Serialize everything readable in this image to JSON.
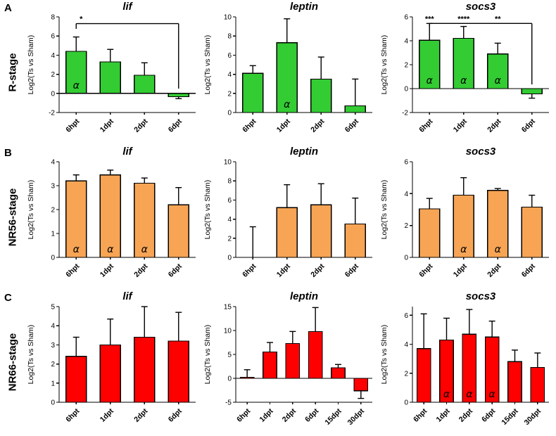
{
  "figure": {
    "alpha_symbol": "α",
    "ylabel": "Log2(Ts vs Sham)",
    "panel_rows": [
      {
        "panel": "A",
        "stage": "R-stage",
        "bar_color": "#33CC33"
      },
      {
        "panel": "B",
        "stage": "NR56-stage",
        "bar_color": "#F7A454"
      },
      {
        "panel": "C",
        "stage": "NR66-stage",
        "bar_color": "#FF0000"
      }
    ]
  },
  "chart_data": [
    {
      "type": "bar",
      "panel": "A",
      "stage": "R-stage",
      "title": "lif",
      "ylabel": "Log2(Ts vs Sham)",
      "bar_color": "#33CC33",
      "categories": [
        "6hpt",
        "1dpt",
        "2dpt",
        "6dpt"
      ],
      "values": [
        4.4,
        3.3,
        1.9,
        -0.35
      ],
      "errors": [
        1.5,
        1.3,
        1.3,
        0.2
      ],
      "ylim": [
        -2,
        8
      ],
      "yticks": [
        -2,
        0,
        2,
        4,
        6,
        8
      ],
      "alpha_marks": [
        0
      ],
      "sig": {
        "y": 7.3,
        "x1": 0,
        "x2": 3,
        "drop1": 6.75,
        "drop2": 0.5,
        "stars": [
          {
            "i": 0,
            "dx": 7,
            "text": "*"
          }
        ]
      }
    },
    {
      "type": "bar",
      "panel": "A",
      "stage": "R-stage",
      "title": "leptin",
      "ylabel": "Log2(Ts vs Sham)",
      "bar_color": "#33CC33",
      "categories": [
        "6hpt",
        "1dpt",
        "2dpt",
        "6dpt"
      ],
      "values": [
        4.1,
        7.3,
        3.5,
        0.7
      ],
      "errors": [
        0.8,
        2.5,
        2.3,
        2.8
      ],
      "ylim": [
        0,
        10
      ],
      "yticks": [
        0,
        2,
        4,
        6,
        8,
        10
      ],
      "alpha_marks": [
        1
      ],
      "sig": null
    },
    {
      "type": "bar",
      "panel": "A",
      "stage": "R-stage",
      "title": "socs3",
      "ylabel": "Log2(Ts vs Sham)",
      "bar_color": "#33CC33",
      "categories": [
        "6hpt",
        "1dpt",
        "2dpt",
        "6dpt"
      ],
      "values": [
        4.05,
        4.2,
        2.9,
        -0.45
      ],
      "errors": [
        1.4,
        1.0,
        0.9,
        0.35
      ],
      "ylim": [
        -2,
        6
      ],
      "yticks": [
        -2,
        0,
        2,
        4,
        6
      ],
      "alpha_marks": [
        0,
        1,
        2
      ],
      "sig": {
        "y": 5.45,
        "x1": 0,
        "x2": 3,
        "drop1": 5.15,
        "drop2": 0.35,
        "stars": [
          {
            "i": 0,
            "text": "***"
          },
          {
            "i": 1,
            "text": "****"
          },
          {
            "i": 2,
            "text": "**"
          }
        ]
      }
    },
    {
      "type": "bar",
      "panel": "B",
      "stage": "NR56-stage",
      "title": "lif",
      "ylabel": "Log2(Ts vs Sham)",
      "bar_color": "#F7A454",
      "categories": [
        "6hpt",
        "1dpt",
        "2dpt",
        "6dpt"
      ],
      "values": [
        3.2,
        3.45,
        3.1,
        2.2
      ],
      "errors": [
        0.25,
        0.2,
        0.22,
        0.72
      ],
      "ylim": [
        0,
        4
      ],
      "yticks": [
        0,
        1,
        2,
        3,
        4
      ],
      "alpha_marks": [
        0,
        1,
        2
      ],
      "sig": null
    },
    {
      "type": "bar",
      "panel": "B",
      "stage": "NR56-stage",
      "title": "leptin",
      "ylabel": "Log2(Ts vs Sham)",
      "bar_color": "#F7A454",
      "categories": [
        "6hpt",
        "1dpt",
        "2dpt",
        "6dpt"
      ],
      "values": [
        0,
        5.2,
        5.5,
        3.5
      ],
      "errors": [
        3.2,
        2.4,
        2.2,
        2.7
      ],
      "ylim": [
        0,
        10
      ],
      "yticks": [
        0,
        2,
        4,
        6,
        8,
        10
      ],
      "alpha_marks": [],
      "sig": null
    },
    {
      "type": "bar",
      "panel": "B",
      "stage": "NR56-stage",
      "title": "socs3",
      "ylabel": "Log2(Ts vs Sham)",
      "bar_color": "#F7A454",
      "categories": [
        "6hpt",
        "1dpt",
        "2dpt",
        "6dpt"
      ],
      "values": [
        3.05,
        3.9,
        4.2,
        3.15
      ],
      "errors": [
        0.65,
        1.1,
        0.12,
        0.75
      ],
      "ylim": [
        0,
        6
      ],
      "yticks": [
        0,
        2,
        4,
        6
      ],
      "alpha_marks": [
        1,
        2
      ],
      "sig": null
    },
    {
      "type": "bar",
      "panel": "C",
      "stage": "NR66-stage",
      "title": "lif",
      "ylabel": "Log2(Ts vs Sham)",
      "bar_color": "#FF0000",
      "categories": [
        "6hpt",
        "1dpt",
        "2dpt",
        "6dpt"
      ],
      "values": [
        2.4,
        3.0,
        3.4,
        3.2
      ],
      "errors": [
        1.0,
        1.35,
        1.6,
        1.5
      ],
      "ylim": [
        0,
        5
      ],
      "yticks": [
        0,
        1,
        2,
        3,
        4,
        5
      ],
      "alpha_marks": [],
      "sig": null
    },
    {
      "type": "bar",
      "panel": "C",
      "stage": "NR66-stage",
      "title": "leptin",
      "ylabel": "Log2(Ts vs Sham)",
      "bar_color": "#FF0000",
      "categories": [
        "6hpt",
        "1dpt",
        "2dpt",
        "6dpt",
        "15dpt",
        "30dpt"
      ],
      "values": [
        0.2,
        5.5,
        7.3,
        9.8,
        2.2,
        -2.6
      ],
      "errors": [
        1.6,
        2.0,
        2.5,
        5.0,
        0.7,
        1.6
      ],
      "ylim": [
        -5,
        15
      ],
      "yticks": [
        -5,
        0,
        5,
        10,
        15
      ],
      "alpha_marks": [],
      "sig": null
    },
    {
      "type": "bar",
      "panel": "C",
      "stage": "NR66-stage",
      "title": "socs3",
      "ylabel": "Log2(Ts vs Sham)",
      "bar_color": "#FF0000",
      "categories": [
        "6hpt",
        "1dpt",
        "2dpt",
        "6dpt",
        "15dpt",
        "30dpt"
      ],
      "values": [
        3.7,
        4.3,
        4.7,
        4.5,
        2.8,
        2.4
      ],
      "errors": [
        2.4,
        1.5,
        1.7,
        1.1,
        0.8,
        1.0
      ],
      "ylim": [
        0,
        6.6
      ],
      "yticks": [
        0,
        2,
        4,
        6
      ],
      "alpha_marks": [
        1,
        2,
        3
      ],
      "sig": null
    }
  ]
}
